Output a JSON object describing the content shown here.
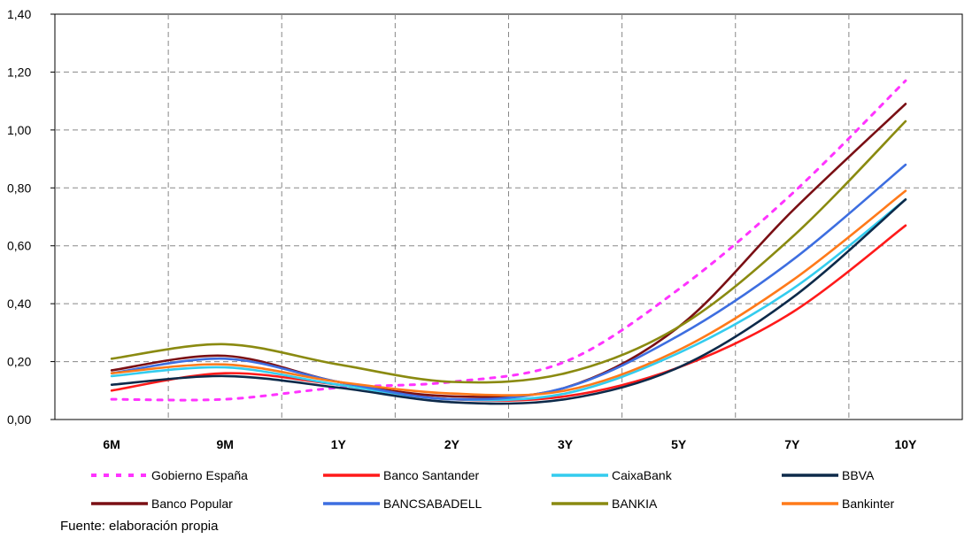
{
  "chart_data": {
    "type": "line",
    "categories": [
      "6M",
      "9M",
      "1Y",
      "2Y",
      "3Y",
      "5Y",
      "7Y",
      "10Y"
    ],
    "ylim": [
      0,
      1.4
    ],
    "yticks": [
      "0,00",
      "0,20",
      "0,40",
      "0,60",
      "0,80",
      "1,00",
      "1,20",
      "1,40"
    ],
    "grid": true,
    "legend_position": "bottom",
    "series": [
      {
        "name": "Gobierno España",
        "color": "#ff33ff",
        "dashed": true,
        "values": [
          0.07,
          0.07,
          0.11,
          0.13,
          0.2,
          0.45,
          0.78,
          1.17
        ]
      },
      {
        "name": "Banco Santander",
        "color": "#ff1a1a",
        "dashed": false,
        "values": [
          0.1,
          0.16,
          0.12,
          0.07,
          0.08,
          0.18,
          0.37,
          0.67
        ]
      },
      {
        "name": "CaixaBank",
        "color": "#33ccee",
        "dashed": false,
        "values": [
          0.15,
          0.18,
          0.12,
          0.07,
          0.09,
          0.23,
          0.45,
          0.76
        ]
      },
      {
        "name": "BBVA",
        "color": "#0d2a4a",
        "dashed": false,
        "values": [
          0.12,
          0.15,
          0.11,
          0.06,
          0.07,
          0.18,
          0.42,
          0.76
        ]
      },
      {
        "name": "Banco Popular",
        "color": "#7a0f14",
        "dashed": false,
        "values": [
          0.17,
          0.22,
          0.13,
          0.08,
          0.11,
          0.32,
          0.72,
          1.09
        ]
      },
      {
        "name": "BANCSABADELL",
        "color": "#3d6ee0",
        "dashed": false,
        "values": [
          0.16,
          0.21,
          0.13,
          0.07,
          0.11,
          0.29,
          0.55,
          0.88
        ]
      },
      {
        "name": "BANKIA",
        "color": "#8a8a10",
        "dashed": false,
        "values": [
          0.21,
          0.26,
          0.19,
          0.13,
          0.16,
          0.32,
          0.63,
          1.03
        ]
      },
      {
        "name": "Bankinter",
        "color": "#ff7a1a",
        "dashed": false,
        "values": [
          0.16,
          0.19,
          0.13,
          0.09,
          0.1,
          0.24,
          0.48,
          0.79
        ]
      }
    ]
  },
  "source_note": "Fuente: elaboración propia"
}
